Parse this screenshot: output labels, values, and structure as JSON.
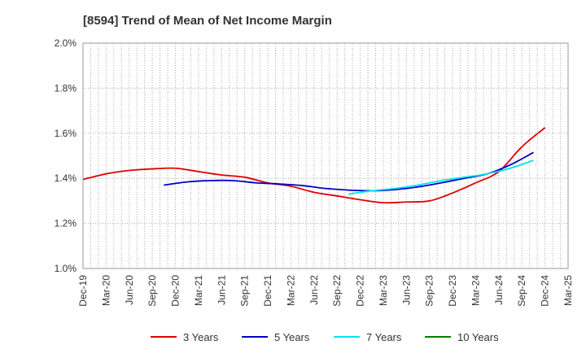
{
  "chart_data": {
    "type": "line",
    "title": "[8594]  Trend of Mean of Net Income Margin",
    "xlabel": "",
    "ylabel": "",
    "ylim": [
      1.0,
      2.0
    ],
    "yticks": [
      "1.0%",
      "1.2%",
      "1.4%",
      "1.6%",
      "1.8%",
      "2.0%"
    ],
    "xticks": [
      "Dec-19",
      "Mar-20",
      "Jun-20",
      "Sep-20",
      "Dec-20",
      "Mar-21",
      "Jun-21",
      "Sep-21",
      "Dec-21",
      "Mar-22",
      "Jun-22",
      "Sep-22",
      "Dec-22",
      "Mar-23",
      "Jun-23",
      "Sep-23",
      "Dec-23",
      "Mar-24",
      "Jun-24",
      "Sep-24",
      "Dec-24",
      "Mar-25"
    ],
    "grid": true,
    "legend_position": "bottom",
    "series": [
      {
        "name": "3 Years",
        "color": "#e00000",
        "start_index": 0,
        "values": [
          1.395,
          1.42,
          1.435,
          1.442,
          1.445,
          1.43,
          1.415,
          1.405,
          1.38,
          1.365,
          1.338,
          1.322,
          1.305,
          1.292,
          1.295,
          1.3,
          1.335,
          1.38,
          1.43,
          1.54,
          1.625
        ]
      },
      {
        "name": "5 Years",
        "color": "#0000cc",
        "start_index": 3.5,
        "values": [
          1.37,
          1.384,
          1.39,
          1.39,
          1.38,
          1.375,
          1.368,
          1.355,
          1.348,
          1.345,
          1.35,
          1.362,
          1.38,
          1.4,
          1.42,
          1.46,
          1.515
        ]
      },
      {
        "name": "7 Years",
        "color": "#00e5ee",
        "start_index": 11.5,
        "values": [
          1.33,
          1.345,
          1.355,
          1.37,
          1.39,
          1.405,
          1.42,
          1.445,
          1.48
        ]
      },
      {
        "name": "10 Years",
        "color": "#008000",
        "start_index": 0,
        "values": []
      }
    ]
  }
}
